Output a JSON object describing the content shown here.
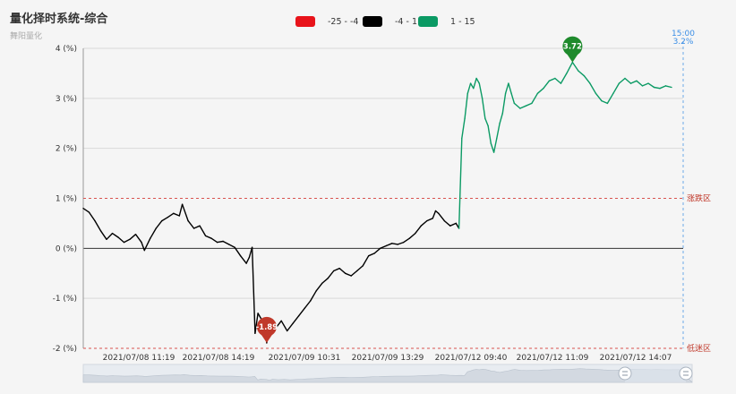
{
  "page": {
    "title": "量化择时系统-综合",
    "subtitle": "舞阳量化"
  },
  "legend": [
    {
      "label": "-25 - -4",
      "color": "#e8131a"
    },
    {
      "label": "-4 - 1",
      "color": "#000000"
    },
    {
      "label": "1 - 15",
      "color": "#0b9a64"
    }
  ],
  "chart_data": {
    "type": "line",
    "y_unit": "%",
    "ylim": [
      -2,
      4
    ],
    "y_ticks": [
      -2,
      -1,
      0,
      1,
      2,
      3,
      4
    ],
    "y_tick_labels": [
      "-2 (%)",
      "-1 (%)",
      "0 (%)",
      "1 (%)",
      "2 (%)",
      "3 (%)",
      "4 (%)"
    ],
    "x_tick_labels": [
      "2021/07/08 11:19",
      "2021/07/08 14:19",
      "2021/07/09 10:31",
      "2021/07/09 13:29",
      "2021/07/12 09:40",
      "2021/07/12 11:09",
      "2021/07/12 14:07"
    ],
    "grid": true,
    "upper_line": {
      "value": 1,
      "label": "涨跌区"
    },
    "lower_line": {
      "value": -2,
      "label": "低迷区"
    },
    "max_marker": {
      "value": 3.72,
      "label": "3.72"
    },
    "min_marker": {
      "value": -1.89,
      "label": "-1.89"
    },
    "end_marker": {
      "time": "15:00",
      "value": "3.2%"
    },
    "series_points": [
      [
        0,
        0.8
      ],
      [
        2,
        0.72
      ],
      [
        4,
        0.55
      ],
      [
        6,
        0.35
      ],
      [
        8,
        0.18
      ],
      [
        10,
        0.3
      ],
      [
        12,
        0.22
      ],
      [
        14,
        0.12
      ],
      [
        16,
        0.18
      ],
      [
        18,
        0.28
      ],
      [
        20,
        0.12
      ],
      [
        21,
        -0.04
      ],
      [
        23,
        0.2
      ],
      [
        25,
        0.4
      ],
      [
        27,
        0.55
      ],
      [
        29,
        0.62
      ],
      [
        31,
        0.7
      ],
      [
        33,
        0.65
      ],
      [
        34,
        0.88
      ],
      [
        36,
        0.55
      ],
      [
        38,
        0.4
      ],
      [
        40,
        0.45
      ],
      [
        42,
        0.25
      ],
      [
        44,
        0.2
      ],
      [
        46,
        0.12
      ],
      [
        48,
        0.14
      ],
      [
        50,
        0.08
      ],
      [
        52,
        0.02
      ],
      [
        54,
        -0.15
      ],
      [
        56,
        -0.3
      ],
      [
        57,
        -0.18
      ],
      [
        58,
        0.02
      ],
      [
        59,
        -1.7
      ],
      [
        60,
        -1.3
      ],
      [
        62,
        -1.5
      ],
      [
        63,
        -1.89
      ],
      [
        64,
        -1.4
      ],
      [
        66,
        -1.6
      ],
      [
        68,
        -1.45
      ],
      [
        70,
        -1.65
      ],
      [
        72,
        -1.5
      ],
      [
        74,
        -1.35
      ],
      [
        76,
        -1.2
      ],
      [
        78,
        -1.05
      ],
      [
        80,
        -0.85
      ],
      [
        82,
        -0.7
      ],
      [
        84,
        -0.6
      ],
      [
        86,
        -0.45
      ],
      [
        88,
        -0.4
      ],
      [
        90,
        -0.5
      ],
      [
        92,
        -0.55
      ],
      [
        94,
        -0.45
      ],
      [
        96,
        -0.35
      ],
      [
        98,
        -0.15
      ],
      [
        100,
        -0.1
      ],
      [
        102,
        0.0
      ],
      [
        104,
        0.05
      ],
      [
        106,
        0.1
      ],
      [
        108,
        0.08
      ],
      [
        110,
        0.12
      ],
      [
        112,
        0.2
      ],
      [
        114,
        0.3
      ],
      [
        116,
        0.45
      ],
      [
        118,
        0.55
      ],
      [
        120,
        0.6
      ],
      [
        121,
        0.75
      ],
      [
        122,
        0.7
      ],
      [
        124,
        0.55
      ],
      [
        126,
        0.45
      ],
      [
        128,
        0.5
      ],
      [
        129,
        0.4
      ],
      [
        130,
        2.2
      ],
      [
        131,
        2.6
      ],
      [
        132,
        3.1
      ],
      [
        133,
        3.3
      ],
      [
        134,
        3.2
      ],
      [
        135,
        3.4
      ],
      [
        136,
        3.3
      ],
      [
        137,
        3.0
      ],
      [
        138,
        2.6
      ],
      [
        139,
        2.45
      ],
      [
        140,
        2.1
      ],
      [
        141,
        1.92
      ],
      [
        142,
        2.2
      ],
      [
        143,
        2.5
      ],
      [
        144,
        2.7
      ],
      [
        145,
        3.1
      ],
      [
        146,
        3.3
      ],
      [
        147,
        3.1
      ],
      [
        148,
        2.9
      ],
      [
        150,
        2.8
      ],
      [
        152,
        2.85
      ],
      [
        154,
        2.9
      ],
      [
        156,
        3.1
      ],
      [
        158,
        3.2
      ],
      [
        160,
        3.35
      ],
      [
        162,
        3.4
      ],
      [
        164,
        3.3
      ],
      [
        166,
        3.5
      ],
      [
        168,
        3.72
      ],
      [
        170,
        3.55
      ],
      [
        172,
        3.45
      ],
      [
        174,
        3.3
      ],
      [
        176,
        3.1
      ],
      [
        178,
        2.95
      ],
      [
        180,
        2.9
      ],
      [
        182,
        3.1
      ],
      [
        184,
        3.3
      ],
      [
        186,
        3.4
      ],
      [
        188,
        3.3
      ],
      [
        190,
        3.35
      ],
      [
        192,
        3.25
      ],
      [
        194,
        3.3
      ],
      [
        196,
        3.22
      ],
      [
        198,
        3.2
      ],
      [
        200,
        3.25
      ],
      [
        202,
        3.22
      ]
    ],
    "colors": {
      "grid": "#d9d9d9",
      "threshold": "#d9534f",
      "end_line": "#6aa9e8",
      "min_pin": "#c0392b",
      "max_pin": "#1e8a2c"
    }
  }
}
